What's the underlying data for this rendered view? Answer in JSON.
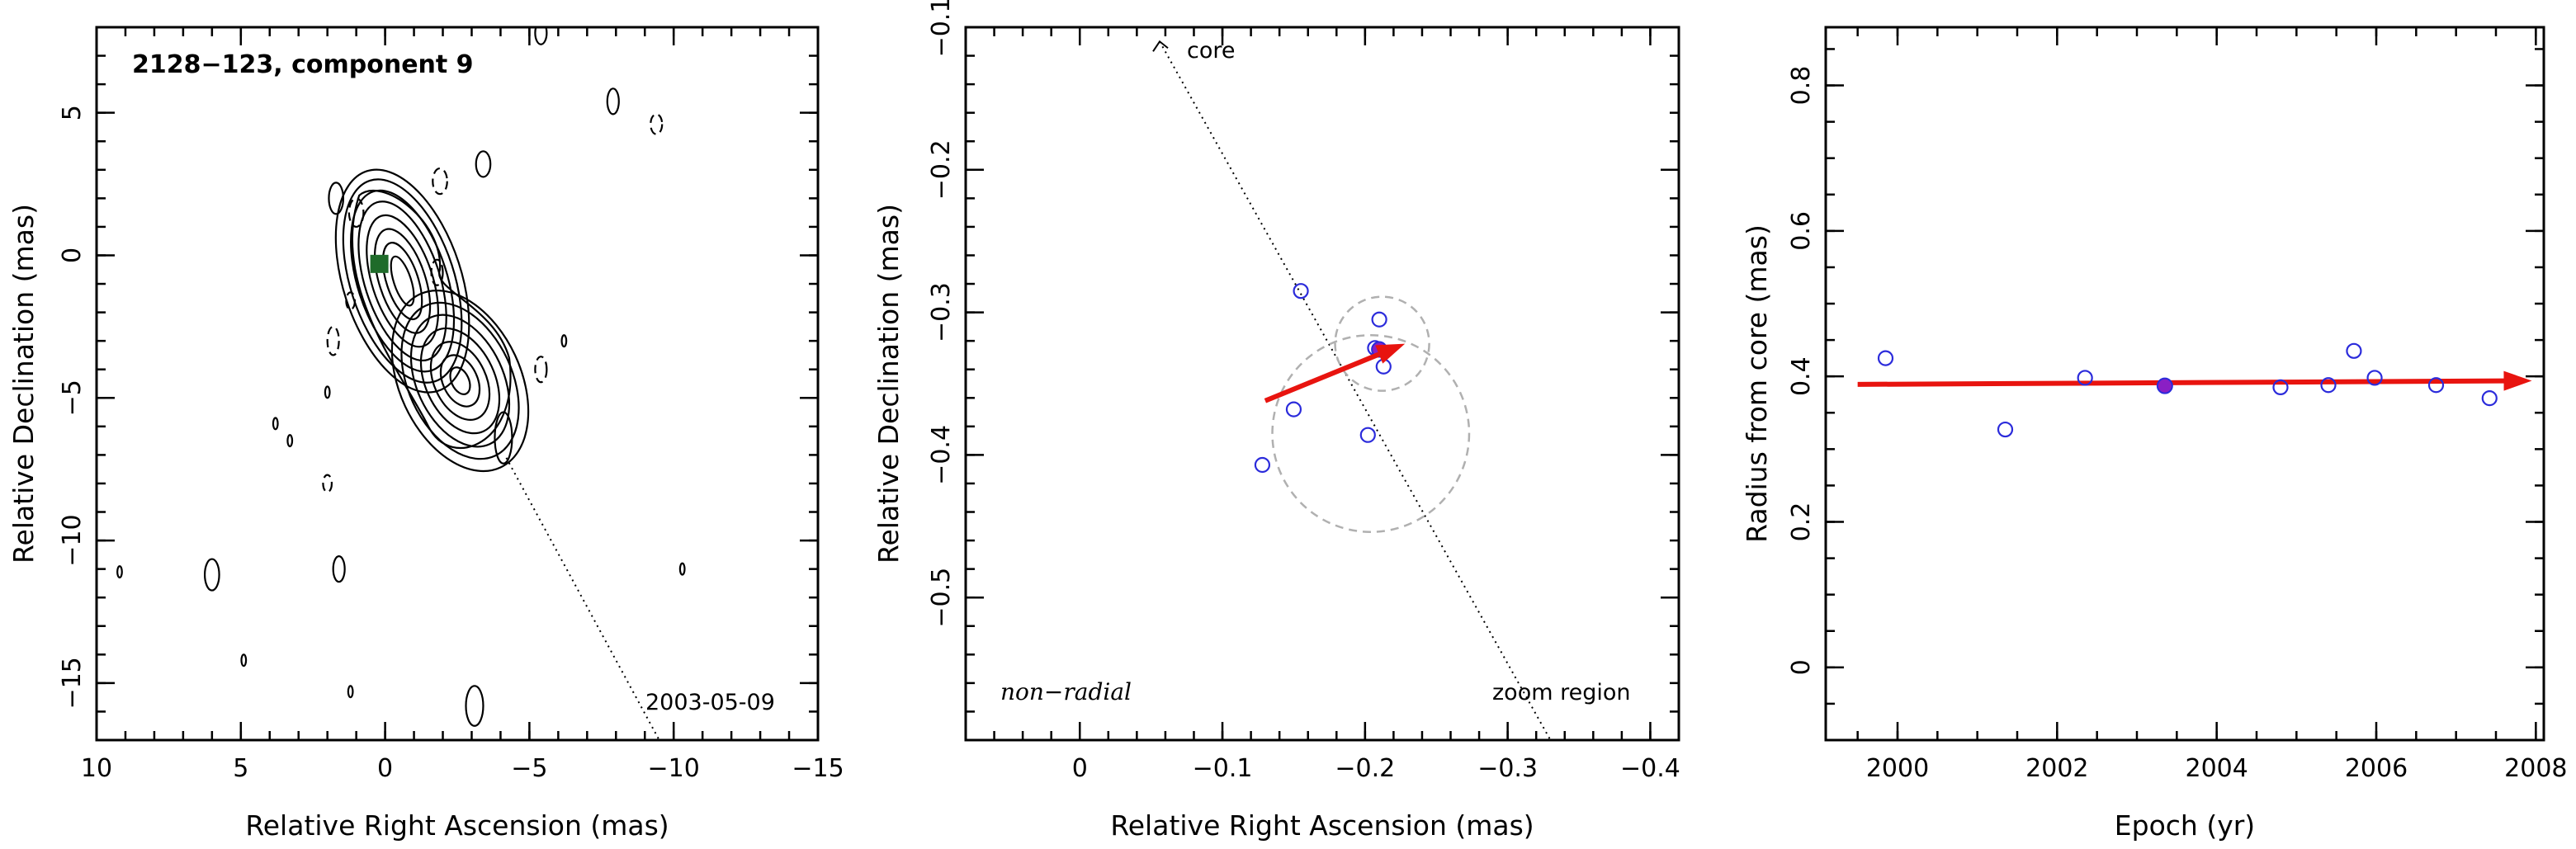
{
  "chart_data": [
    {
      "type": "contour",
      "title": "2128−123, component 9",
      "epoch_label": "2003‑05‑09",
      "xlabel": "Relative Right Ascension (mas)",
      "ylabel": "Relative Declination (mas)",
      "xlim": [
        10,
        -15
      ],
      "ylim": [
        -17,
        8
      ],
      "xticks": [
        10,
        5,
        0,
        -5,
        -10,
        -15
      ],
      "xtick_labels": [
        "10",
        "5",
        "0",
        "−5",
        "−10",
        "−15"
      ],
      "yticks": [
        5,
        0,
        -5,
        -10,
        -15
      ],
      "ytick_labels": [
        "5",
        "0",
        "−5",
        "−10",
        "−15"
      ],
      "component_marker": {
        "x": 0.2,
        "y": -0.3,
        "color": "#1f6b2a"
      },
      "jet_direction_line": {
        "from": [
          -4.2,
          -7.1
        ],
        "to": [
          -9.5,
          -17
        ]
      }
    },
    {
      "type": "scatter",
      "annotation": "non−radial",
      "core_label": "core",
      "zoom_label": "zoom region",
      "xlabel": "Relative Right Ascension (mas)",
      "ylabel": "Relative Declination (mas)",
      "xlim": [
        0.08,
        -0.42
      ],
      "ylim": [
        -0.6,
        -0.1
      ],
      "xticks": [
        0,
        -0.1,
        -0.2,
        -0.3,
        -0.4
      ],
      "xtick_labels": [
        "0",
        "−0.1",
        "−0.2",
        "−0.3",
        "−0.4"
      ],
      "yticks": [
        -0.1,
        -0.2,
        -0.3,
        -0.4,
        -0.5
      ],
      "ytick_labels": [
        "−0.1",
        "−0.2",
        "−0.3",
        "−0.4",
        "−0.5"
      ],
      "points": [
        {
          "x": -0.155,
          "y": -0.285
        },
        {
          "x": -0.21,
          "y": -0.305
        },
        {
          "x": -0.207,
          "y": -0.325
        },
        {
          "x": -0.213,
          "y": -0.338
        },
        {
          "x": -0.15,
          "y": -0.368
        },
        {
          "x": -0.202,
          "y": -0.386
        },
        {
          "x": -0.128,
          "y": -0.407
        }
      ],
      "highlight_point": {
        "x": -0.21,
        "y": -0.326
      },
      "arrow": {
        "from": [
          -0.13,
          -0.362
        ],
        "to": [
          -0.228,
          -0.322
        ]
      },
      "circles": [
        {
          "cx": -0.212,
          "cy": -0.322,
          "r": 0.033
        },
        {
          "cx": -0.204,
          "cy": -0.385,
          "r": 0.069
        }
      ],
      "core_line": {
        "from": [
          -0.056,
          -0.11
        ],
        "to": [
          -0.33,
          -0.6
        ]
      }
    },
    {
      "type": "scatter",
      "xlabel": "Epoch (yr)",
      "ylabel": "Radius from core (mas)",
      "xlim": [
        1999.1,
        2008.1
      ],
      "ylim": [
        -0.1,
        0.88
      ],
      "xticks": [
        2000,
        2002,
        2004,
        2006,
        2008
      ],
      "xtick_labels": [
        "2000",
        "2002",
        "2004",
        "2006",
        "2008"
      ],
      "yticks": [
        0,
        0.2,
        0.4,
        0.6,
        0.8
      ],
      "ytick_labels": [
        "0",
        "0.2",
        "0.4",
        "0.6",
        "0.8"
      ],
      "points": [
        {
          "x": 1999.85,
          "y": 0.425
        },
        {
          "x": 2001.35,
          "y": 0.327
        },
        {
          "x": 2002.35,
          "y": 0.398
        },
        {
          "x": 2004.8,
          "y": 0.385
        },
        {
          "x": 2005.4,
          "y": 0.388
        },
        {
          "x": 2005.72,
          "y": 0.435
        },
        {
          "x": 2005.98,
          "y": 0.398
        },
        {
          "x": 2006.75,
          "y": 0.388
        },
        {
          "x": 2007.42,
          "y": 0.37
        }
      ],
      "highlight_point": {
        "x": 2003.35,
        "y": 0.387
      },
      "fit_arrow": {
        "from": [
          1999.5,
          0.389
        ],
        "to": [
          2007.95,
          0.394
        ]
      }
    }
  ],
  "colors": {
    "arrow": "#e8140f",
    "open_point": "#2b2bdb",
    "highlight_point": "#8a1fc4",
    "circle": "#b0b0b0",
    "marker": "#1f6b2a"
  }
}
